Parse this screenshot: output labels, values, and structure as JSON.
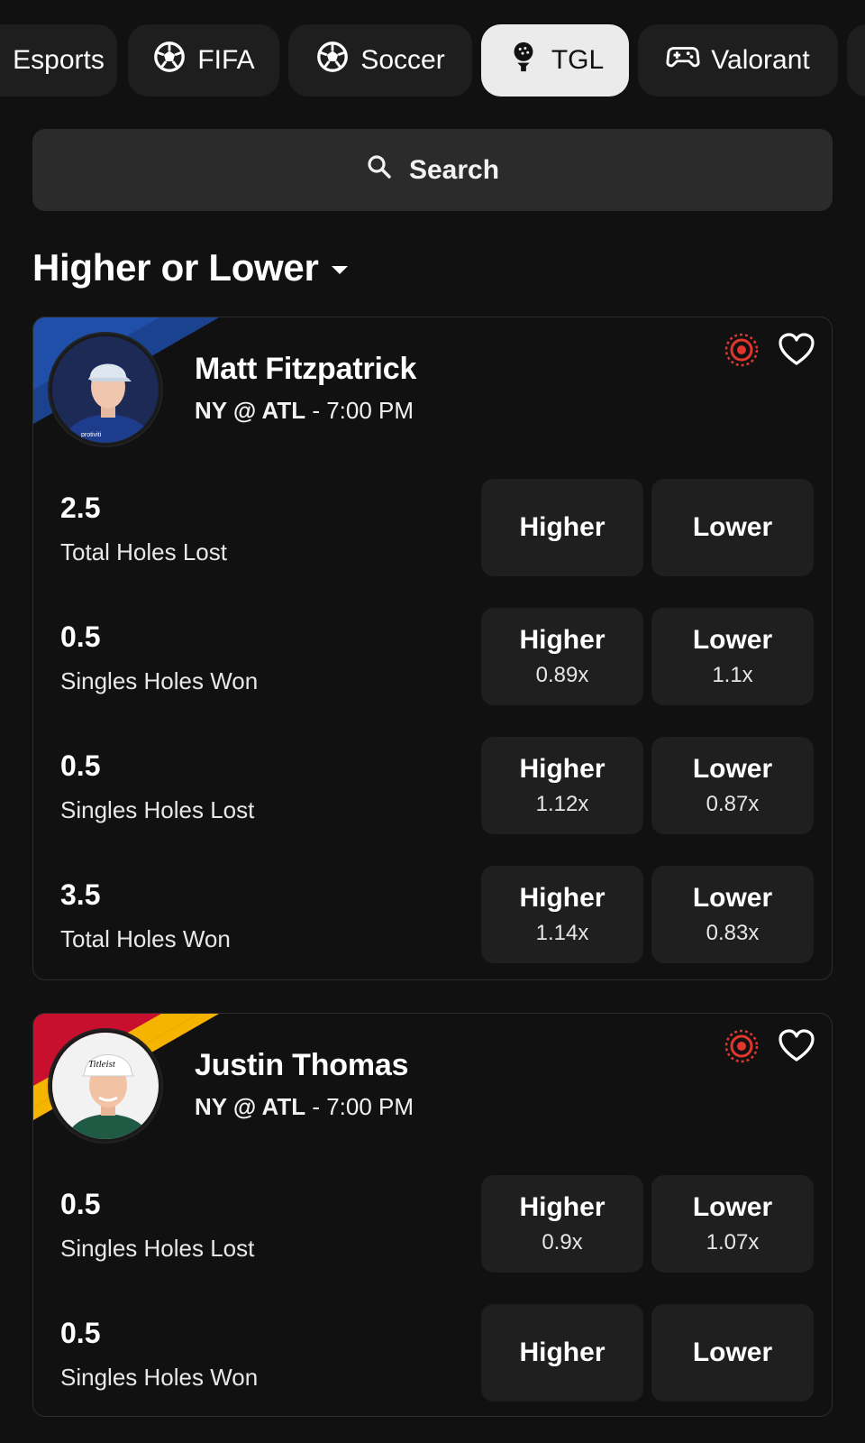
{
  "tabs": [
    {
      "label": "Esports",
      "icon": "esports-icon"
    },
    {
      "label": "FIFA",
      "icon": "soccer-ball-icon"
    },
    {
      "label": "Soccer",
      "icon": "soccer-ball-icon"
    },
    {
      "label": "TGL",
      "icon": "golf-ball-icon",
      "active": true
    },
    {
      "label": "Valorant",
      "icon": "gamepad-icon"
    }
  ],
  "search": {
    "label": "Search"
  },
  "section": {
    "title": "Higher or Lower"
  },
  "colors": {
    "background": "#111111",
    "card_bg": "#1f1f1f",
    "accent_red": "#e0362c",
    "ny_stripe": "#1f4fa8",
    "atl_stripe_red": "#c8102e",
    "atl_stripe_yellow": "#f4b400"
  },
  "players": [
    {
      "name": "Matt Fitzpatrick",
      "matchup_teams": "NY @ ATL",
      "matchup_time": " - 7:00 PM",
      "props": [
        {
          "line": "2.5",
          "stat": "Total Holes Lost",
          "higher": "Higher",
          "higher_mult": "",
          "lower": "Lower",
          "lower_mult": ""
        },
        {
          "line": "0.5",
          "stat": "Singles Holes Won",
          "higher": "Higher",
          "higher_mult": "0.89x",
          "lower": "Lower",
          "lower_mult": "1.1x"
        },
        {
          "line": "0.5",
          "stat": "Singles Holes Lost",
          "higher": "Higher",
          "higher_mult": "1.12x",
          "lower": "Lower",
          "lower_mult": "0.87x"
        },
        {
          "line": "3.5",
          "stat": "Total Holes Won",
          "higher": "Higher",
          "higher_mult": "1.14x",
          "lower": "Lower",
          "lower_mult": "0.83x"
        }
      ]
    },
    {
      "name": "Justin Thomas",
      "matchup_teams": "NY @ ATL",
      "matchup_time": " - 7:00 PM",
      "props": [
        {
          "line": "0.5",
          "stat": "Singles Holes Lost",
          "higher": "Higher",
          "higher_mult": "0.9x",
          "lower": "Lower",
          "lower_mult": "1.07x"
        },
        {
          "line": "0.5",
          "stat": "Singles Holes Won",
          "higher": "Higher",
          "higher_mult": "",
          "lower": "Lower",
          "lower_mult": ""
        }
      ]
    }
  ]
}
